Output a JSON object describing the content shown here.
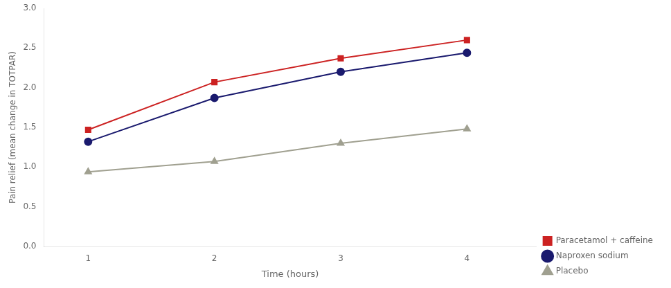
{
  "chart_data": {
    "type": "line",
    "x": [
      1,
      2,
      3,
      4
    ],
    "series": [
      {
        "name": "Paracetamol + caffeine",
        "color": "#cc2222",
        "marker": "square",
        "values": [
          1.47,
          2.07,
          2.37,
          2.6
        ]
      },
      {
        "name": "Naproxen sodium",
        "color": "#1a1a6e",
        "marker": "circle",
        "values": [
          1.32,
          1.87,
          2.2,
          2.44
        ]
      },
      {
        "name": "Placebo",
        "color": "#a0a090",
        "marker": "triangle",
        "values": [
          0.94,
          1.07,
          1.3,
          1.48
        ]
      }
    ],
    "xlabel": "Time (hours)",
    "ylabel": "Pain relief (mean change in TOTPAR)",
    "xlim": [
      0.65,
      4.55
    ],
    "xticks": [
      1,
      2,
      3,
      4
    ],
    "ylim": [
      0,
      3.0
    ],
    "yticks": [
      {
        "value": 0,
        "label": "0.0"
      },
      {
        "value": 0.5,
        "label": "0.5"
      },
      {
        "value": 1.0,
        "label": "1.0"
      },
      {
        "value": 1.5,
        "label": "1.5"
      },
      {
        "value": 2.0,
        "label": "2.0"
      },
      {
        "value": 2.5,
        "label": "2.5"
      },
      {
        "value": 3.0,
        "label": "3.0"
      }
    ],
    "grid": false,
    "legend": "lower right"
  }
}
